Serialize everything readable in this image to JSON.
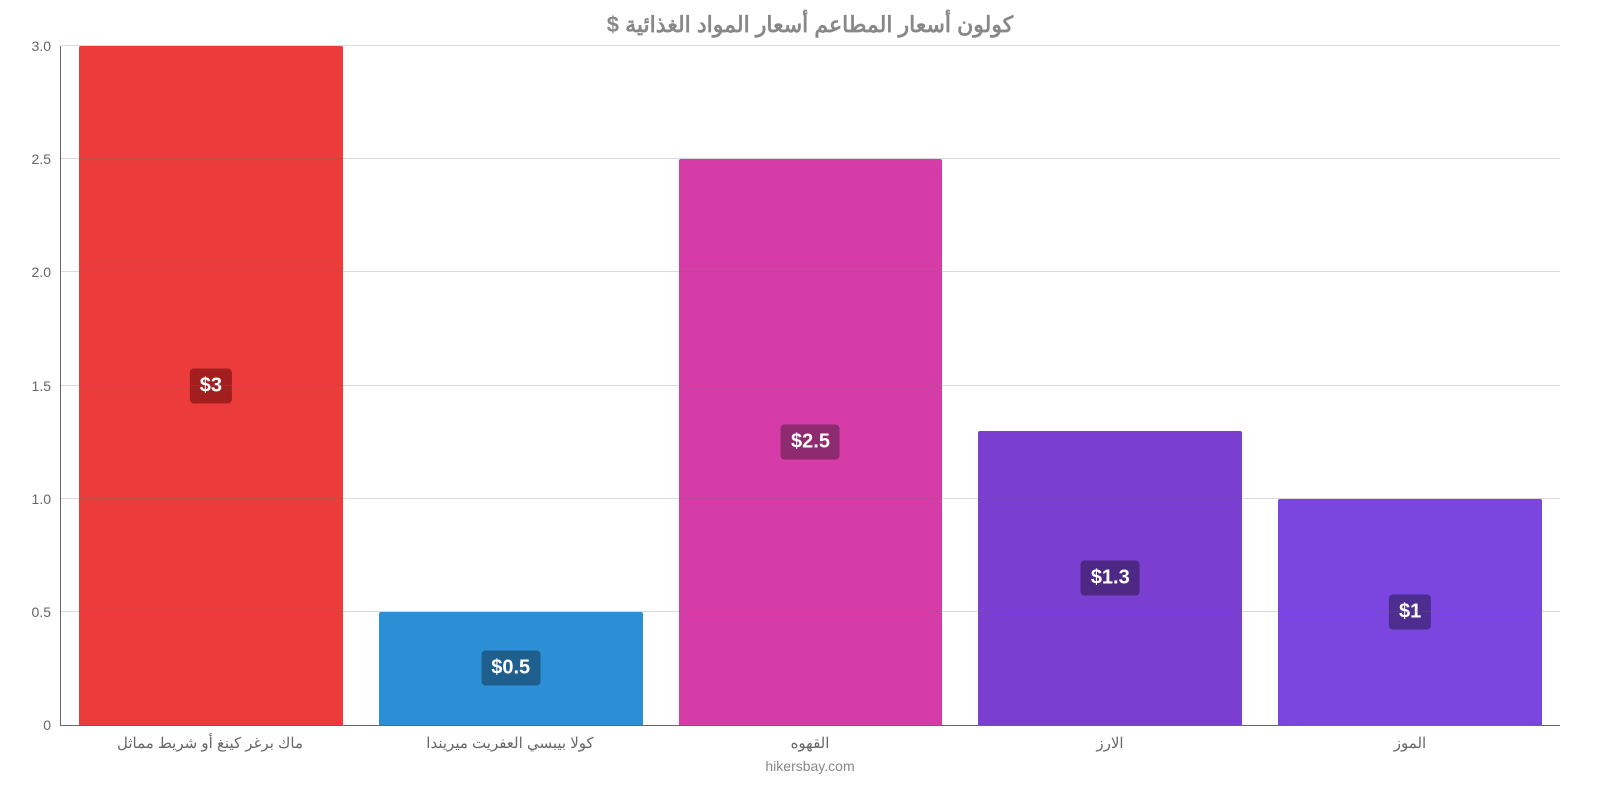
{
  "chart": {
    "type": "bar",
    "title": "كولون أسعار المطاعم أسعار المواد الغذائية $",
    "title_color": "#888888",
    "title_fontsize": 22,
    "background_color": "#ffffff",
    "axis_color": "#666666",
    "grid_color": "#666666",
    "grid_opacity": 0.25,
    "label_color": "#666666",
    "ylim": [
      0,
      3.0
    ],
    "yticks": [
      0,
      0.5,
      1.0,
      1.5,
      2.0,
      2.5,
      3.0
    ],
    "ytick_labels": [
      "0",
      "0.5",
      "1.0",
      "1.5",
      "2.0",
      "2.5",
      "3.0"
    ],
    "bar_width_pct": 88,
    "categories": [
      "ماك برغر كينغ أو شريط مماثل",
      "كولا بيبسي العفريت ميريندا",
      "القهوه",
      "الارز",
      "الموز"
    ],
    "values": [
      3.0,
      0.5,
      2.5,
      1.3,
      1.0
    ],
    "value_labels": [
      "$3",
      "$0.5",
      "$2.5",
      "$1.3",
      "$1"
    ],
    "bar_colors": [
      "#ec3b3b",
      "#2b8fd6",
      "#d63ca8",
      "#7a3fd1",
      "#7b46e0"
    ],
    "label_badge_colors": [
      "#a31f1f",
      "#1e5f8e",
      "#8e2a70",
      "#4e2885",
      "#4e2d90"
    ],
    "value_label_fontsize": 20,
    "xlabel_fontsize": 15,
    "attribution": "hikersbay.com"
  }
}
